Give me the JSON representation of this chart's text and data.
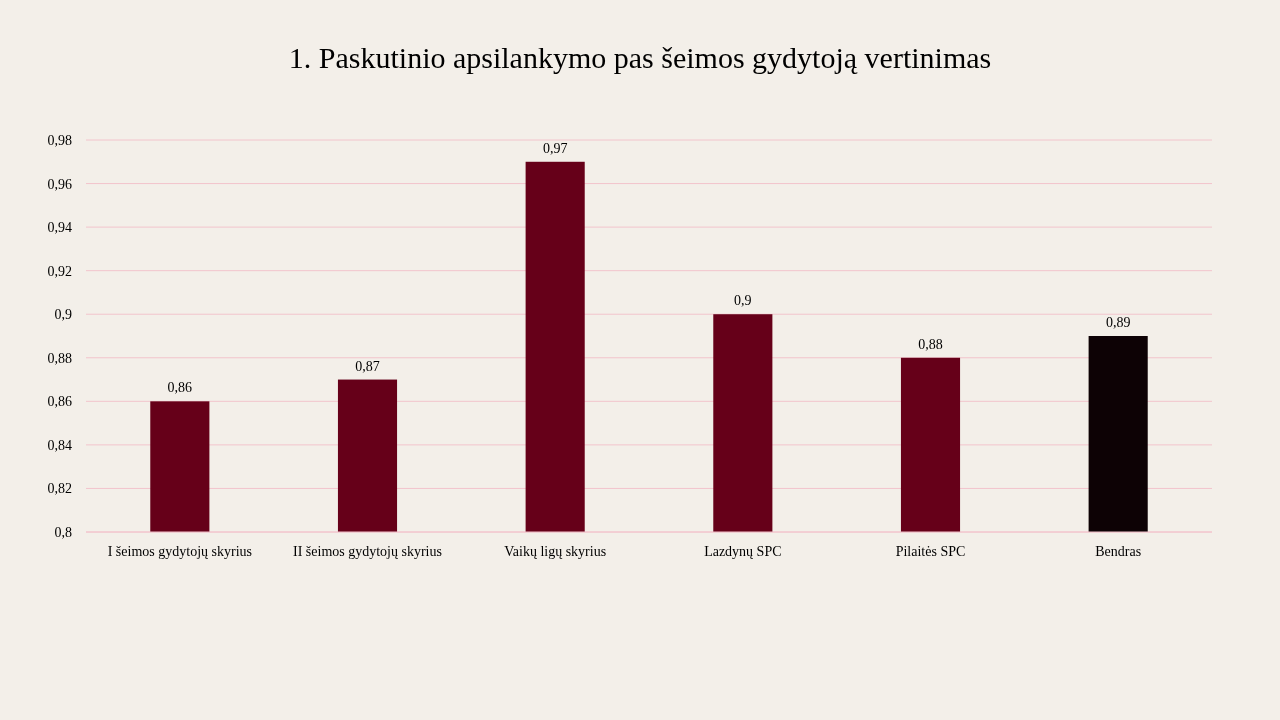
{
  "chart_data": {
    "type": "bar",
    "title": "1. Paskutinio apsilankymo pas šeimos gydytoją vertinimas",
    "categories": [
      "I šeimos gydytojų skyrius",
      "II šeimos gydytojų skyrius",
      "Vaikų ligų skyrius",
      "Lazdynų SPC",
      "Pilaitės SPC",
      "Bendras"
    ],
    "values": [
      0.86,
      0.87,
      0.97,
      0.9,
      0.88,
      0.89
    ],
    "colors": [
      "#660019",
      "#660019",
      "#660019",
      "#660019",
      "#660019",
      "#0d0205"
    ],
    "value_labels": [
      "0,86",
      "0,87",
      "0,97",
      "0,9",
      "0,88",
      "0,89"
    ],
    "ylim": [
      0.8,
      0.98
    ],
    "yticks": [
      {
        "value": 0.8,
        "label": "0,8"
      },
      {
        "value": 0.82,
        "label": "0,82"
      },
      {
        "value": 0.84,
        "label": "0,84"
      },
      {
        "value": 0.86,
        "label": "0,86"
      },
      {
        "value": 0.88,
        "label": "0,88"
      },
      {
        "value": 0.9,
        "label": "0,9"
      },
      {
        "value": 0.92,
        "label": "0,92"
      },
      {
        "value": 0.94,
        "label": "0,94"
      },
      {
        "value": 0.96,
        "label": "0,96"
      },
      {
        "value": 0.98,
        "label": "0,98"
      }
    ],
    "grid": "y"
  }
}
